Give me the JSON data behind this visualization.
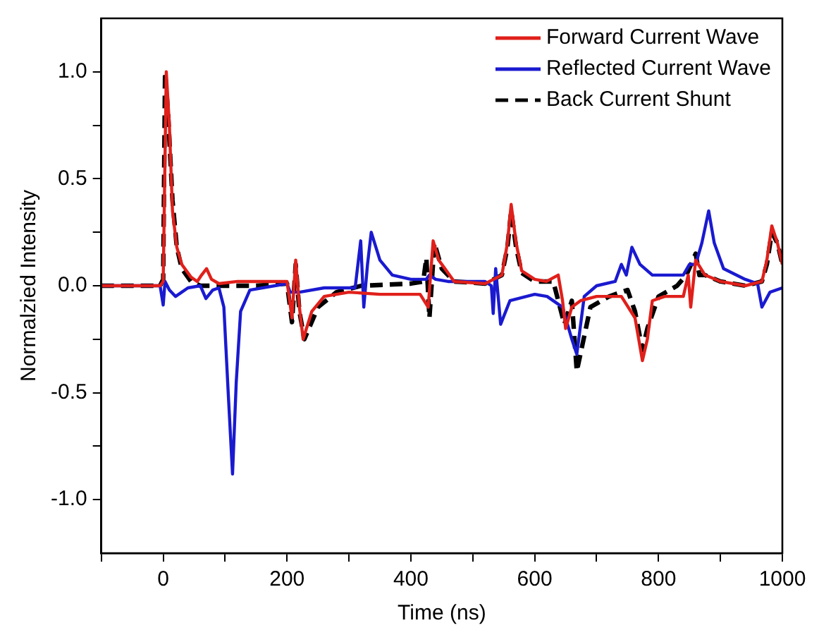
{
  "chart_data": {
    "type": "line",
    "xlabel": "Time (ns)",
    "ylabel": "Normalzied Intensity",
    "xlim": [
      -100,
      1000
    ],
    "ylim": [
      -1.25,
      1.25
    ],
    "xticks": [
      {
        "value": -100,
        "label": null
      },
      0,
      {
        "value": 100,
        "label": null
      },
      200,
      {
        "value": 300,
        "label": null
      },
      400,
      {
        "value": 500,
        "label": null
      },
      600,
      {
        "value": 700,
        "label": null
      },
      800,
      {
        "value": 900,
        "label": null
      },
      1000
    ],
    "yticks": [
      {
        "value": -1,
        "label": "-1.0"
      },
      {
        "value": -0.75,
        "label": null
      },
      {
        "value": -0.5,
        "label": "-0.5"
      },
      {
        "value": -0.25,
        "label": null
      },
      {
        "value": 0,
        "label": "0.0"
      },
      {
        "value": 0.25,
        "label": null
      },
      {
        "value": 0.5,
        "label": "0.5"
      },
      {
        "value": 0.75,
        "label": null
      },
      {
        "value": 1,
        "label": "1.0"
      }
    ],
    "grid": false,
    "legend": "top right",
    "marker": "none",
    "series": [
      {
        "name": "Forward Current Wave",
        "color": "#e0201b",
        "line_style": "solid",
        "x": [
          -100,
          -5,
          0,
          5,
          10,
          15,
          22,
          30,
          45,
          55,
          62,
          70,
          78,
          90,
          120,
          175,
          200,
          208,
          214,
          220,
          226,
          240,
          260,
          300,
          350,
          415,
          428,
          436,
          445,
          470,
          520,
          547,
          556,
          562,
          570,
          579,
          600,
          619,
          638,
          645,
          650,
          660,
          674,
          700,
          740,
          762,
          774,
          782,
          790,
          810,
          840,
          848,
          852,
          860,
          875,
          900,
          940,
          967,
          975,
          983,
          992,
          1000
        ],
        "values": [
          0,
          0,
          0.02,
          1.0,
          0.75,
          0.35,
          0.18,
          0.1,
          0.04,
          0.02,
          0.05,
          0.08,
          0.03,
          0.01,
          0.02,
          0.02,
          0.02,
          -0.15,
          0.12,
          -0.1,
          -0.25,
          -0.12,
          -0.05,
          -0.03,
          -0.04,
          -0.04,
          -0.1,
          0.21,
          0.12,
          0.02,
          0.01,
          0.05,
          0.2,
          0.38,
          0.2,
          0.07,
          0.03,
          0.02,
          0.05,
          -0.07,
          -0.2,
          -0.1,
          -0.07,
          -0.05,
          -0.05,
          -0.15,
          -0.35,
          -0.25,
          -0.07,
          -0.05,
          -0.05,
          0.05,
          -0.1,
          0.12,
          0.05,
          0.02,
          0.0,
          0.02,
          0.12,
          0.28,
          0.2,
          0.1
        ]
      },
      {
        "name": "Reflected Current Wave",
        "color": "#1a1ad0",
        "line_style": "solid",
        "x": [
          -100,
          -5,
          0,
          3,
          10,
          20,
          40,
          60,
          69,
          80,
          90,
          98,
          105,
          112,
          118,
          125,
          140,
          200,
          205,
          220,
          260,
          310,
          319,
          324,
          330,
          336,
          350,
          370,
          400,
          425,
          430,
          440,
          460,
          520,
          530,
          533,
          537,
          545,
          560,
          600,
          620,
          645,
          660,
          668,
          680,
          700,
          730,
          740,
          748,
          757,
          770,
          790,
          840,
          850,
          860,
          870,
          881,
          890,
          905,
          940,
          960,
          967,
          980,
          1000
        ],
        "values": [
          0,
          0,
          -0.09,
          0.02,
          -0.02,
          -0.05,
          -0.01,
          0,
          -0.06,
          -0.02,
          -0.01,
          -0.1,
          -0.5,
          -0.88,
          -0.45,
          -0.12,
          -0.02,
          0.01,
          -0.03,
          -0.03,
          -0.01,
          -0.01,
          0.21,
          -0.1,
          0.1,
          0.25,
          0.12,
          0.05,
          0.03,
          0.03,
          0.05,
          0.03,
          0.02,
          0.02,
          0.0,
          -0.13,
          0.08,
          -0.18,
          -0.07,
          -0.04,
          -0.05,
          -0.1,
          -0.25,
          -0.32,
          -0.05,
          0.0,
          0.02,
          0.1,
          0.05,
          0.18,
          0.1,
          0.05,
          0.05,
          0.1,
          0.1,
          0.2,
          0.35,
          0.2,
          0.08,
          0.03,
          0.01,
          -0.1,
          -0.03,
          -0.01
        ]
      },
      {
        "name": "Back Current Shunt",
        "color": "#000000",
        "line_style": "dashed",
        "x": [
          -100,
          -5,
          0,
          3,
          8,
          15,
          22,
          30,
          45,
          60,
          90,
          150,
          200,
          208,
          214,
          220,
          228,
          250,
          280,
          320,
          400,
          420,
          425,
          430,
          438,
          450,
          470,
          520,
          547,
          556,
          562,
          570,
          579,
          600,
          630,
          648,
          660,
          668,
          690,
          720,
          750,
          762,
          774,
          782,
          800,
          830,
          845,
          860,
          866,
          875,
          900,
          940,
          967,
          975,
          983,
          992,
          1000
        ],
        "values": [
          0,
          0,
          0.03,
          1.0,
          0.8,
          0.4,
          0.18,
          0.08,
          0.02,
          0.0,
          0.0,
          0.0,
          0.01,
          -0.17,
          0.1,
          -0.12,
          -0.25,
          -0.1,
          -0.03,
          0.0,
          0.01,
          0.02,
          0.13,
          -0.15,
          0.2,
          0.08,
          0.02,
          0.01,
          0.05,
          0.18,
          0.35,
          0.18,
          0.06,
          0.02,
          0.02,
          -0.18,
          -0.07,
          -0.4,
          -0.1,
          -0.05,
          -0.02,
          -0.12,
          -0.3,
          -0.2,
          -0.05,
          0.0,
          0.05,
          0.15,
          0.05,
          0.05,
          0.02,
          0.0,
          0.02,
          0.1,
          0.25,
          0.2,
          0.1
        ]
      }
    ]
  }
}
